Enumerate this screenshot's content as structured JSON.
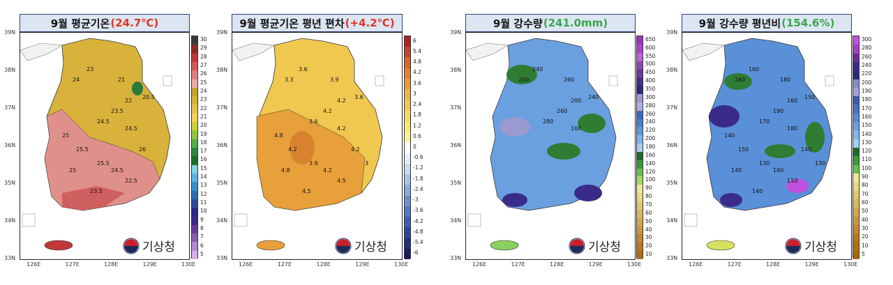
{
  "panels": [
    {
      "title_main": "9월 평균기온",
      "title_value": "(24.7℃)",
      "value_color": "#e53222",
      "colorbar_ticks": [
        "30",
        "29",
        "28",
        "27",
        "26",
        "25",
        "24",
        "23",
        "22",
        "21",
        "20",
        "19",
        "18",
        "17",
        "16",
        "15",
        "14",
        "13",
        "12",
        "11",
        "10",
        "9",
        "8",
        "7",
        "6",
        "5"
      ],
      "colorbar_colors": [
        "#3a3a3a",
        "#8e2a2a",
        "#c03838",
        "#d45a5a",
        "#e07e7e",
        "#f0a8a8",
        "#c8a230",
        "#d6b23a",
        "#e3c44c",
        "#f0d25a",
        "#c9d13a",
        "#8fc63e",
        "#54b04a",
        "#2a8a3a",
        "#1e6b2a",
        "#7fd1e8",
        "#5ab4e0",
        "#3a90cc",
        "#2a6eb0",
        "#2a4f9a",
        "#2a2a8a",
        "#3a2a8a",
        "#6a3a9a",
        "#8a5ab0",
        "#b08ad0",
        "#d0b0e8"
      ],
      "contour_labels": [
        "23",
        "24",
        "21",
        "20.5",
        "22",
        "23.5",
        "24.5",
        "24.5",
        "25",
        "25.5",
        "26",
        "25.5",
        "25",
        "24.5",
        "22.5",
        "23.5"
      ],
      "map_fill": "#d9b23c",
      "map_accent": "#e0908a"
    },
    {
      "title_main": "9월  평균기온  평년  편차",
      "title_value": "(+4.2℃)",
      "value_color": "#e53222",
      "colorbar_ticks": [
        "6",
        "5.4",
        "4.8",
        "4.2",
        "3.6",
        "3",
        "2.4",
        "1.8",
        "1.2",
        "0.6",
        "0",
        "-0.6",
        "-1.2",
        "-1.8",
        "-2.4",
        "-3",
        "-3.6",
        "-4.2",
        "-4.8",
        "-5.4",
        "-6"
      ],
      "colorbar_colors": [
        "#b22222",
        "#c8442a",
        "#d8642e",
        "#e38232",
        "#ea9c3a",
        "#efb446",
        "#f3c852",
        "#f6da62",
        "#f8e876",
        "#faf294",
        "#ffffff",
        "#e6f0fa",
        "#c8dcf2",
        "#a6c6ea",
        "#86ace0",
        "#6a92d4",
        "#5078c4",
        "#3a5eb2",
        "#2a4698",
        "#22307e",
        "#1a1a66"
      ],
      "contour_labels": [
        "3.6",
        "3.3",
        "3.9",
        "3.6",
        "4.2",
        "4.2",
        "3.6",
        "4.2",
        "4.8",
        "4.2",
        "4.2",
        "3.9",
        "4.8",
        "4.2",
        "4.5",
        "4.5",
        "3"
      ],
      "map_fill": "#e8a03a",
      "map_accent": "#f0c850"
    },
    {
      "title_main": "9월  강수량",
      "title_value": "(241.0mm)",
      "value_color": "#3aa64a",
      "colorbar_ticks": [
        "650",
        "600",
        "550",
        "500",
        "450",
        "400",
        "350",
        "300",
        "280",
        "260",
        "240",
        "220",
        "200",
        "180",
        "160",
        "140",
        "120",
        "100",
        "90",
        "80",
        "70",
        "60",
        "50",
        "40",
        "30",
        "20",
        "10"
      ],
      "colorbar_colors": [
        "#a030c0",
        "#b040d0",
        "#c060e0",
        "#8a4ab0",
        "#6a3a9a",
        "#4a2a8a",
        "#2a2a7a",
        "#9a9ad0",
        "#b0b0e0",
        "#3a6ac0",
        "#4a80d0",
        "#5a98e0",
        "#7ab4ea",
        "#a6d0f0",
        "#1e6b2a",
        "#3a9a3a",
        "#6ac04a",
        "#a8d86a",
        "#f0e890",
        "#e8d880",
        "#e0c870",
        "#d8b860",
        "#d0a850",
        "#c89840",
        "#c08830",
        "#b87820",
        "#b07010"
      ],
      "contour_labels": [
        "240",
        "200",
        "260",
        "240",
        "200",
        "260",
        "280",
        "160"
      ],
      "map_fill": "#6aa0e0",
      "map_accent": "#2e7d32"
    },
    {
      "title_main": "9월  강수량  평년비",
      "title_value": "(154.6%)",
      "value_color": "#3aa64a",
      "colorbar_ticks": [
        "300",
        "280",
        "260",
        "240",
        "220",
        "200",
        "190",
        "180",
        "170",
        "160",
        "150",
        "140",
        "130",
        "120",
        "110",
        "100",
        "90",
        "80",
        "70",
        "60",
        "50",
        "40",
        "30",
        "20",
        "10",
        "5"
      ],
      "colorbar_colors": [
        "#c050e0",
        "#a040c0",
        "#6a2a9a",
        "#3a2a8a",
        "#2a2a7a",
        "#8a8acc",
        "#a0a0d8",
        "#3a5ab0",
        "#4a70c0",
        "#5a88d0",
        "#6aa0e0",
        "#80b8ea",
        "#a0d0f2",
        "#1e6b2a",
        "#3a9a3a",
        "#6ac04a",
        "#f0e890",
        "#e8d880",
        "#e0c870",
        "#d8b860",
        "#d0a850",
        "#c89840",
        "#c08830",
        "#b87820",
        "#b07010",
        "#a86808"
      ],
      "contour_labels": [
        "160",
        "160",
        "180",
        "150",
        "160",
        "190",
        "170",
        "180",
        "140",
        "150",
        "140",
        "130",
        "140",
        "160",
        "110",
        "140",
        "130"
      ],
      "map_fill": "#5a90d8",
      "map_accent": "#3a2a8a"
    }
  ],
  "axes": {
    "lat_labels": [
      "39N",
      "38N",
      "37N",
      "36N",
      "35N",
      "34N",
      "33N"
    ],
    "lon_labels": [
      "126E",
      "127E",
      "128E",
      "129E",
      "130E"
    ]
  },
  "agency": {
    "name": "기상청"
  }
}
